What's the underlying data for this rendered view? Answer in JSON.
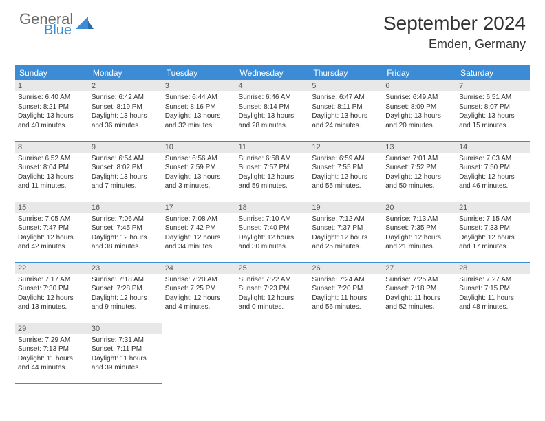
{
  "logo": {
    "top": "General",
    "bottom": "Blue"
  },
  "title": "September 2024",
  "location": "Emden, Germany",
  "colors": {
    "header_bg": "#3b8cd4",
    "header_text": "#ffffff",
    "daynum_bg": "#e8e8e8",
    "border": "#3b8cd4",
    "logo_gray": "#6b6b6b",
    "logo_blue": "#3b8cd4"
  },
  "weekdays": [
    "Sunday",
    "Monday",
    "Tuesday",
    "Wednesday",
    "Thursday",
    "Friday",
    "Saturday"
  ],
  "weeks": [
    [
      {
        "n": "1",
        "sr": "6:40 AM",
        "ss": "8:21 PM",
        "dl": "13 hours and 40 minutes."
      },
      {
        "n": "2",
        "sr": "6:42 AM",
        "ss": "8:19 PM",
        "dl": "13 hours and 36 minutes."
      },
      {
        "n": "3",
        "sr": "6:44 AM",
        "ss": "8:16 PM",
        "dl": "13 hours and 32 minutes."
      },
      {
        "n": "4",
        "sr": "6:46 AM",
        "ss": "8:14 PM",
        "dl": "13 hours and 28 minutes."
      },
      {
        "n": "5",
        "sr": "6:47 AM",
        "ss": "8:11 PM",
        "dl": "13 hours and 24 minutes."
      },
      {
        "n": "6",
        "sr": "6:49 AM",
        "ss": "8:09 PM",
        "dl": "13 hours and 20 minutes."
      },
      {
        "n": "7",
        "sr": "6:51 AM",
        "ss": "8:07 PM",
        "dl": "13 hours and 15 minutes."
      }
    ],
    [
      {
        "n": "8",
        "sr": "6:52 AM",
        "ss": "8:04 PM",
        "dl": "13 hours and 11 minutes."
      },
      {
        "n": "9",
        "sr": "6:54 AM",
        "ss": "8:02 PM",
        "dl": "13 hours and 7 minutes."
      },
      {
        "n": "10",
        "sr": "6:56 AM",
        "ss": "7:59 PM",
        "dl": "13 hours and 3 minutes."
      },
      {
        "n": "11",
        "sr": "6:58 AM",
        "ss": "7:57 PM",
        "dl": "12 hours and 59 minutes."
      },
      {
        "n": "12",
        "sr": "6:59 AM",
        "ss": "7:55 PM",
        "dl": "12 hours and 55 minutes."
      },
      {
        "n": "13",
        "sr": "7:01 AM",
        "ss": "7:52 PM",
        "dl": "12 hours and 50 minutes."
      },
      {
        "n": "14",
        "sr": "7:03 AM",
        "ss": "7:50 PM",
        "dl": "12 hours and 46 minutes."
      }
    ],
    [
      {
        "n": "15",
        "sr": "7:05 AM",
        "ss": "7:47 PM",
        "dl": "12 hours and 42 minutes."
      },
      {
        "n": "16",
        "sr": "7:06 AM",
        "ss": "7:45 PM",
        "dl": "12 hours and 38 minutes."
      },
      {
        "n": "17",
        "sr": "7:08 AM",
        "ss": "7:42 PM",
        "dl": "12 hours and 34 minutes."
      },
      {
        "n": "18",
        "sr": "7:10 AM",
        "ss": "7:40 PM",
        "dl": "12 hours and 30 minutes."
      },
      {
        "n": "19",
        "sr": "7:12 AM",
        "ss": "7:37 PM",
        "dl": "12 hours and 25 minutes."
      },
      {
        "n": "20",
        "sr": "7:13 AM",
        "ss": "7:35 PM",
        "dl": "12 hours and 21 minutes."
      },
      {
        "n": "21",
        "sr": "7:15 AM",
        "ss": "7:33 PM",
        "dl": "12 hours and 17 minutes."
      }
    ],
    [
      {
        "n": "22",
        "sr": "7:17 AM",
        "ss": "7:30 PM",
        "dl": "12 hours and 13 minutes."
      },
      {
        "n": "23",
        "sr": "7:18 AM",
        "ss": "7:28 PM",
        "dl": "12 hours and 9 minutes."
      },
      {
        "n": "24",
        "sr": "7:20 AM",
        "ss": "7:25 PM",
        "dl": "12 hours and 4 minutes."
      },
      {
        "n": "25",
        "sr": "7:22 AM",
        "ss": "7:23 PM",
        "dl": "12 hours and 0 minutes."
      },
      {
        "n": "26",
        "sr": "7:24 AM",
        "ss": "7:20 PM",
        "dl": "11 hours and 56 minutes."
      },
      {
        "n": "27",
        "sr": "7:25 AM",
        "ss": "7:18 PM",
        "dl": "11 hours and 52 minutes."
      },
      {
        "n": "28",
        "sr": "7:27 AM",
        "ss": "7:15 PM",
        "dl": "11 hours and 48 minutes."
      }
    ],
    [
      {
        "n": "29",
        "sr": "7:29 AM",
        "ss": "7:13 PM",
        "dl": "11 hours and 44 minutes."
      },
      {
        "n": "30",
        "sr": "7:31 AM",
        "ss": "7:11 PM",
        "dl": "11 hours and 39 minutes."
      },
      null,
      null,
      null,
      null,
      null
    ]
  ]
}
